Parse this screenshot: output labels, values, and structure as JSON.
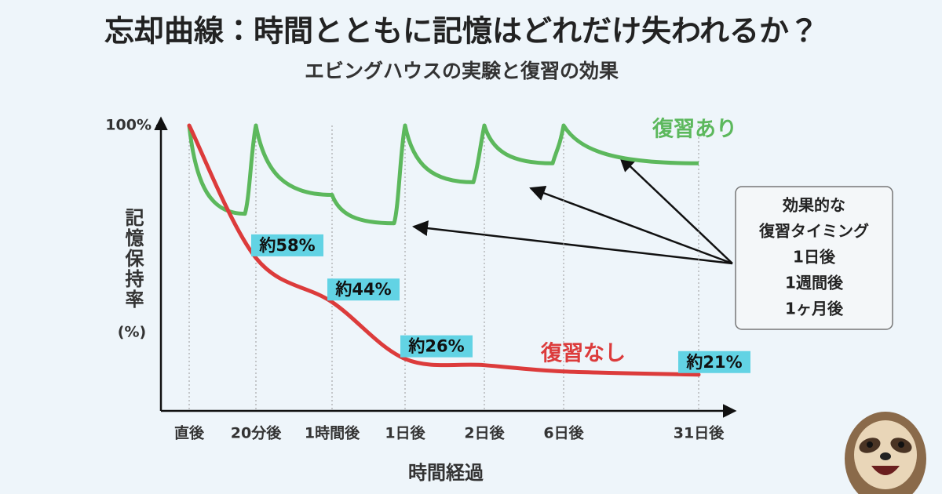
{
  "chart_data": {
    "type": "line",
    "title": "忘却曲線：時間とともに記憶はどれだけ失われるか？",
    "subtitle": "エビングハウスの実験と復習の効果",
    "x_label": "時間経過",
    "y_label": "記憶保持率",
    "y_unit_label": "(%)",
    "categories": [
      "直後",
      "20分後",
      "1時間後",
      "1日後",
      "2日後",
      "6日後",
      "31日後"
    ],
    "ylim": [
      10,
      100
    ],
    "yticks": [
      {
        "value": 100,
        "label": "100%"
      }
    ],
    "grid": true,
    "series": [
      {
        "name": "復習あり",
        "color": "#5cb85c",
        "values": [
          100,
          72,
          78,
          69,
          82,
          88,
          88
        ],
        "review_values": [
          null,
          100,
          null,
          100,
          100,
          100,
          null
        ]
      },
      {
        "name": "復習なし",
        "color": "#dc3b3b",
        "values": [
          100,
          58,
          44,
          26,
          24,
          22,
          21
        ],
        "value_labels": [
          null,
          "約58%",
          "約44%",
          "約26%",
          null,
          null,
          "約21%"
        ]
      }
    ],
    "annotation": {
      "lines": [
        "効果的な",
        "復習タイミング",
        "1日後",
        "1週間後",
        "1ヶ月後"
      ]
    }
  }
}
